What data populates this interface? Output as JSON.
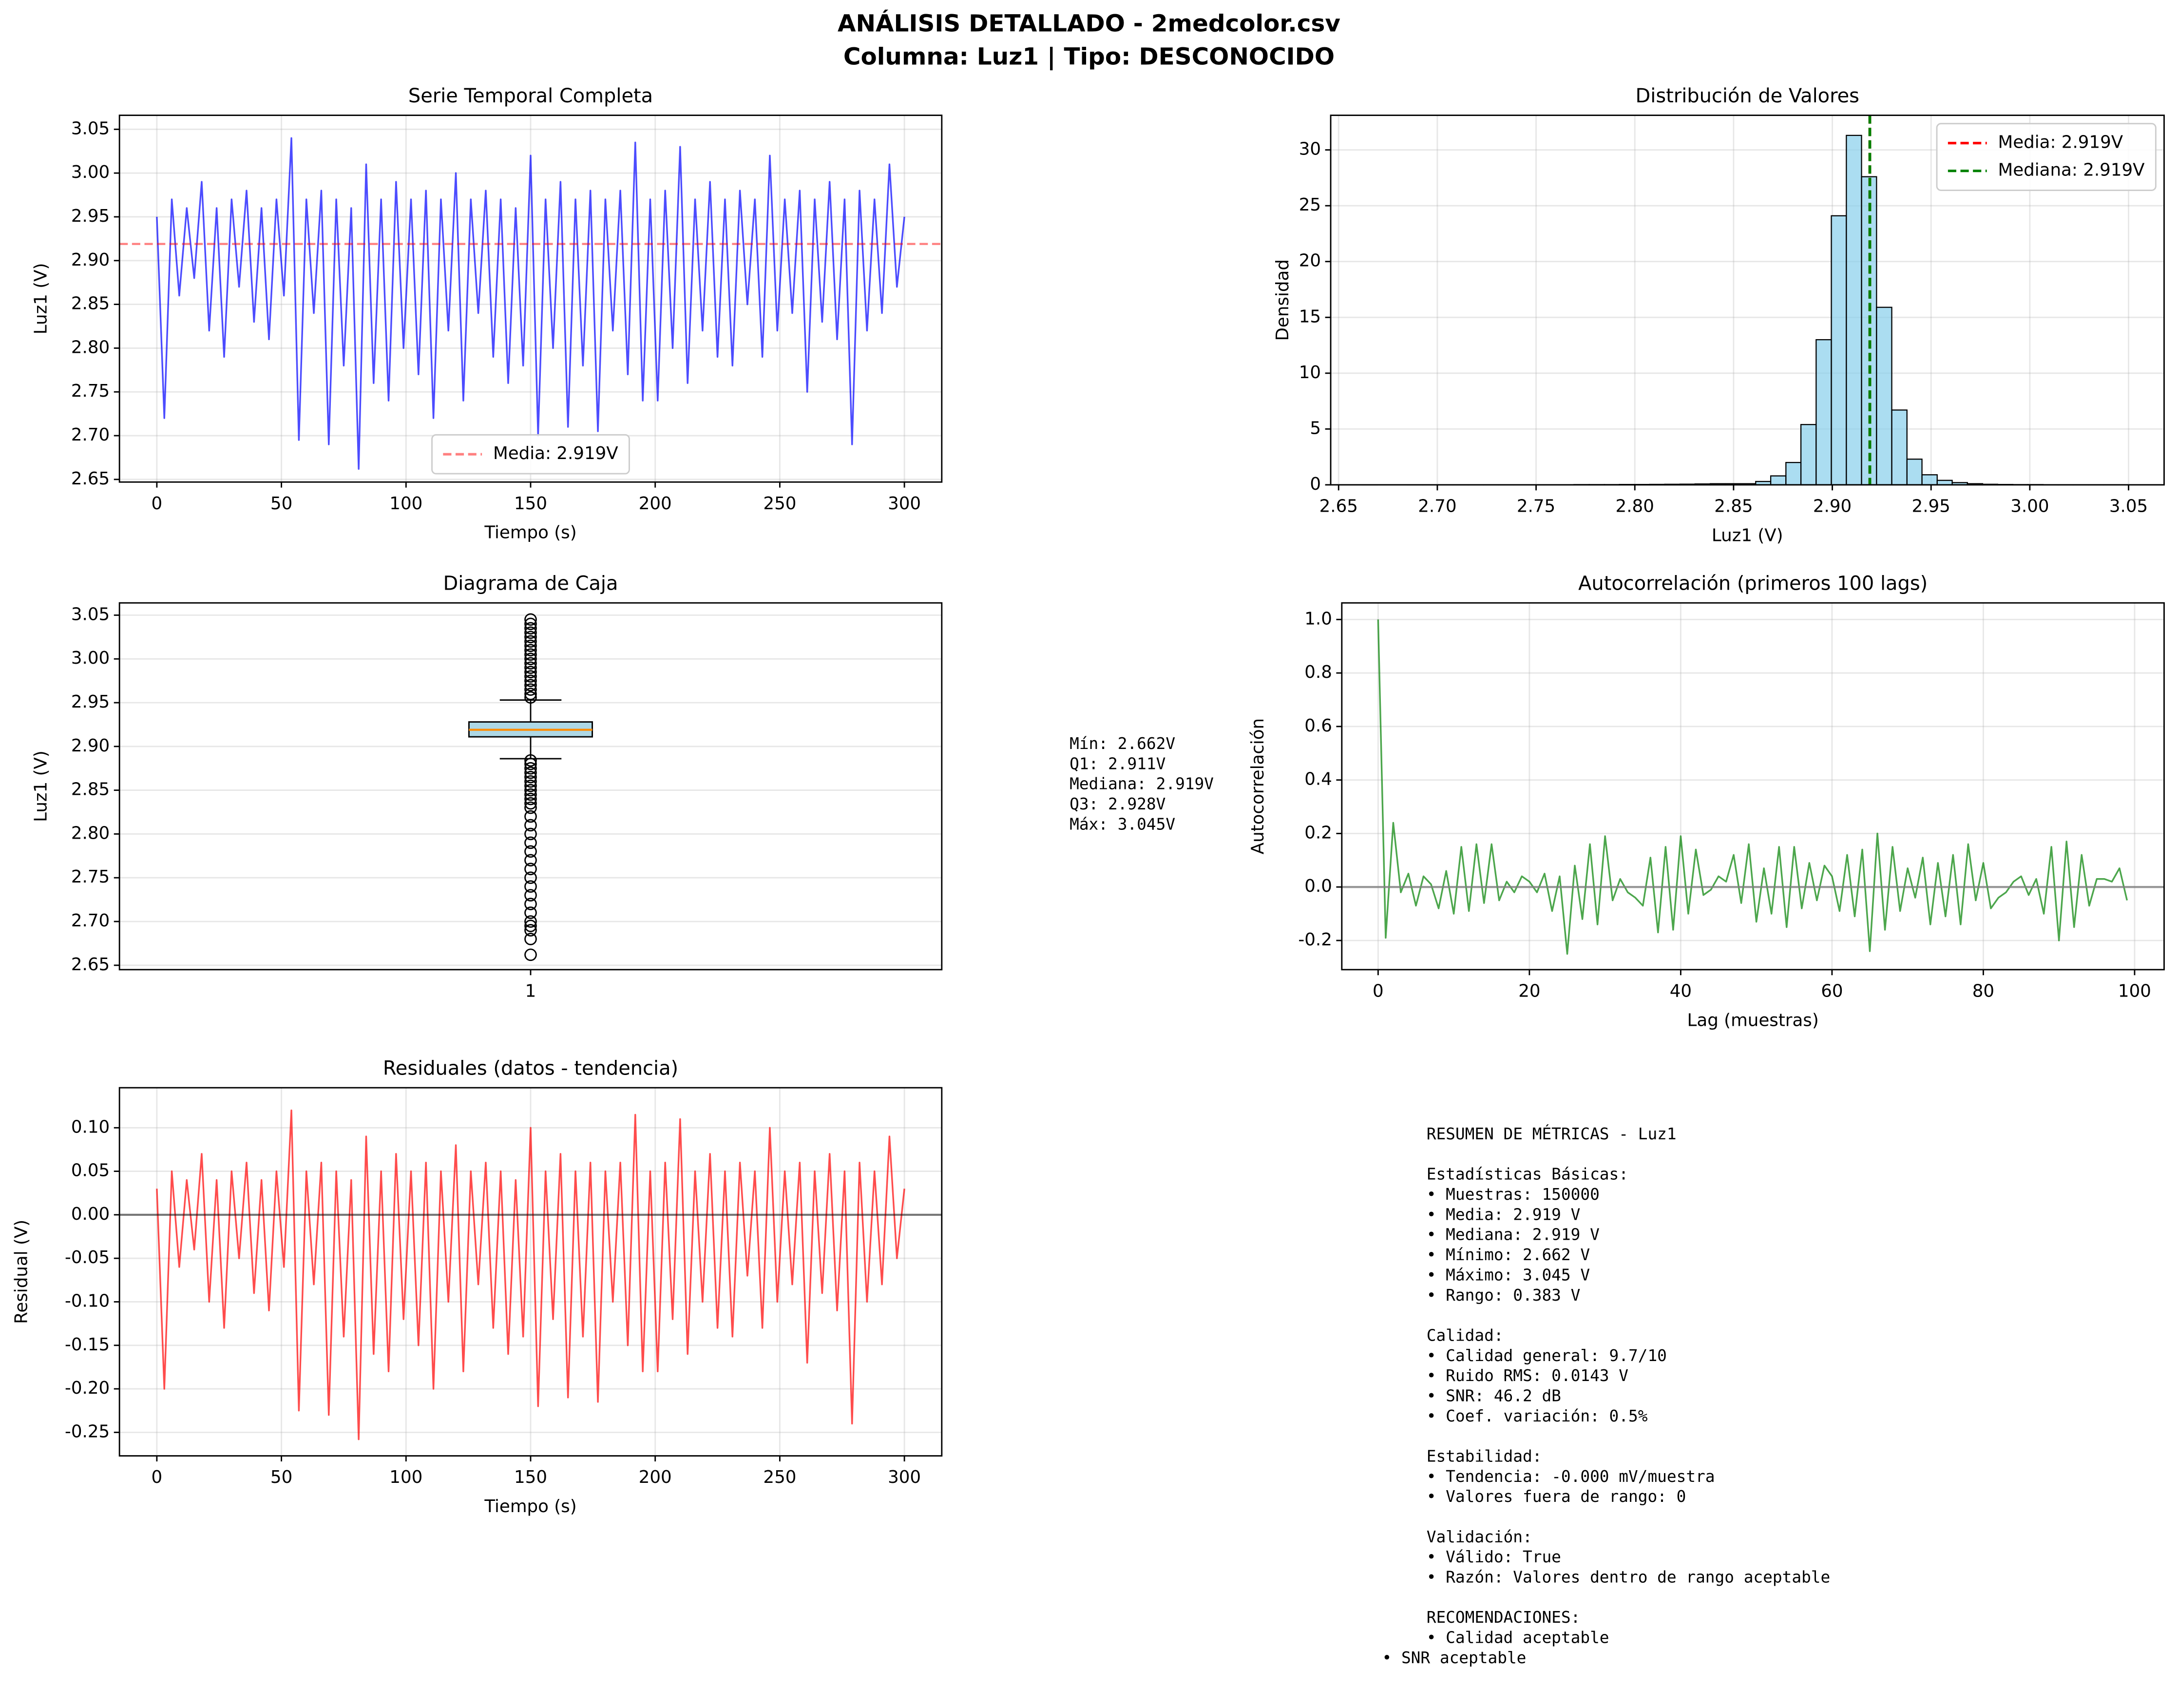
{
  "suptitle": [
    "ANÁLISIS DETALLADO - 2medcolor.csv",
    "Columna: Luz1 | Tipo: DESCONOCIDO"
  ],
  "chart_data": [
    {
      "type": "line",
      "title": "Serie Temporal Completa",
      "xlabel": "Tiempo (s)",
      "ylabel": "Luz1 (V)",
      "grid": "both",
      "legend": "lower center",
      "x": [
        0,
        3,
        6,
        9,
        12,
        15,
        18,
        21,
        24,
        27,
        30,
        33,
        36,
        39,
        42,
        45,
        48,
        51,
        54,
        57,
        60,
        63,
        66,
        69,
        72,
        75,
        78,
        81,
        84,
        87,
        90,
        93,
        96,
        99,
        102,
        105,
        108,
        111,
        114,
        117,
        120,
        123,
        126,
        129,
        132,
        135,
        138,
        141,
        144,
        147,
        150,
        153,
        156,
        159,
        162,
        165,
        168,
        171,
        174,
        177,
        180,
        183,
        186,
        189,
        192,
        195,
        198,
        201,
        204,
        207,
        210,
        213,
        216,
        219,
        222,
        225,
        228,
        231,
        234,
        237,
        240,
        243,
        246,
        249,
        252,
        255,
        258,
        261,
        264,
        267,
        270,
        273,
        276,
        279,
        282,
        285,
        288,
        291,
        294,
        297,
        300
      ],
      "series": [
        {
          "color": "#0000ff",
          "alpha": 0.7,
          "values": [
            2.95,
            2.72,
            2.97,
            2.86,
            2.96,
            2.88,
            2.99,
            2.82,
            2.96,
            2.79,
            2.97,
            2.87,
            2.98,
            2.83,
            2.96,
            2.81,
            2.97,
            2.86,
            3.04,
            2.695,
            2.97,
            2.84,
            2.98,
            2.69,
            2.97,
            2.78,
            2.96,
            2.662,
            3.01,
            2.76,
            2.97,
            2.74,
            2.99,
            2.8,
            2.97,
            2.77,
            2.98,
            2.72,
            2.97,
            2.82,
            3.0,
            2.74,
            2.97,
            2.84,
            2.98,
            2.79,
            2.97,
            2.76,
            2.96,
            2.78,
            3.02,
            2.7,
            2.97,
            2.8,
            2.99,
            2.71,
            2.97,
            2.78,
            2.98,
            2.705,
            2.97,
            2.82,
            2.98,
            2.77,
            3.035,
            2.74,
            2.97,
            2.74,
            2.98,
            2.8,
            3.03,
            2.76,
            2.97,
            2.82,
            2.99,
            2.79,
            2.97,
            2.78,
            2.98,
            2.85,
            2.97,
            2.79,
            3.02,
            2.82,
            2.97,
            2.84,
            2.98,
            2.75,
            2.97,
            2.83,
            2.99,
            2.81,
            2.97,
            2.69,
            2.98,
            2.82,
            2.97,
            2.84,
            3.01,
            2.87,
            2.95
          ]
        }
      ],
      "hlines": [
        {
          "name": "Media: 2.919V",
          "value": 2.919,
          "color": "#ff0000",
          "alpha": 0.5,
          "style": "dashed"
        }
      ],
      "xlim": [
        -15,
        315
      ],
      "xticks": [
        0,
        50,
        100,
        150,
        200,
        250,
        300
      ],
      "ylim": [
        2.647,
        3.066
      ],
      "yticks": [
        3.05,
        {
          "value": 3,
          "label": "3.00"
        },
        2.95,
        {
          "value": 2.9,
          "label": "2.90"
        },
        2.85,
        {
          "value": 2.8,
          "label": "2.80"
        },
        2.75,
        {
          "value": 2.7,
          "label": "2.70"
        },
        2.65
      ]
    },
    {
      "type": "histogram",
      "title": "Distribución de Valores",
      "xlabel": "Luz1 (V)",
      "ylabel": "Densidad",
      "grid": "both",
      "legend": "upper right",
      "color": "#87ceeb",
      "alpha": 0.7,
      "bins": [
        2.662,
        2.6697,
        2.6773,
        2.685,
        2.6926,
        2.7003,
        2.708,
        2.7156,
        2.7233,
        2.7309,
        2.7386,
        2.7463,
        2.7539,
        2.7616,
        2.7692,
        2.7769,
        2.7846,
        2.7922,
        2.7999,
        2.8075,
        2.8152,
        2.8229,
        2.8305,
        2.8382,
        2.8458,
        2.8535,
        2.8612,
        2.8688,
        2.8765,
        2.8841,
        2.8918,
        2.8995,
        2.9071,
        2.9148,
        2.9224,
        2.9301,
        2.9378,
        2.9454,
        2.9531,
        2.9607,
        2.9684,
        2.9761,
        2.9837,
        2.9914,
        2.999,
        3.0067,
        3.0144,
        3.022,
        3.0297,
        3.0373,
        3.045
      ],
      "values": [
        0.01,
        0,
        0,
        0.01,
        0.01,
        0.01,
        0.01,
        0.01,
        0.01,
        0.01,
        0.01,
        0.01,
        0.01,
        0.01,
        0.02,
        0.02,
        0.02,
        0.03,
        0.03,
        0.04,
        0.05,
        0.06,
        0.08,
        0.1,
        0.1,
        0.1,
        0.3,
        0.8,
        2.0,
        5.4,
        13.0,
        24.1,
        31.3,
        27.6,
        15.9,
        6.7,
        2.3,
        0.9,
        0.4,
        0.2,
        0.1,
        0.05,
        0.03,
        0.02,
        0.02,
        0.01,
        0.01,
        0.01,
        0.01,
        0.01
      ],
      "vlines": [
        {
          "name": "Media: 2.919V",
          "value": 2.919,
          "color": "#ff0000",
          "style": "dashed"
        },
        {
          "name": "Mediana: 2.919V",
          "value": 2.919,
          "color": "#008000",
          "style": "dashed"
        }
      ],
      "xlim": [
        2.646,
        3.068
      ],
      "xticks": [
        2.65,
        {
          "value": 2.7,
          "label": "2.70"
        },
        2.75,
        {
          "value": 2.8,
          "label": "2.80"
        },
        2.85,
        {
          "value": 2.9,
          "label": "2.90"
        },
        2.95,
        {
          "value": 3,
          "label": "3.00"
        },
        3.05
      ],
      "ylim": [
        0,
        33.1
      ],
      "yticks": [
        0,
        5,
        10,
        15,
        20,
        25,
        30
      ]
    },
    {
      "type": "box",
      "title": "Diagrama de Caja",
      "ylabel": "Luz1 (V)",
      "grid": "y",
      "categories": [
        "1"
      ],
      "box_color": "#add8e6",
      "median_color": "#ff8c00",
      "whislo": 2.886,
      "q1": 2.911,
      "median": 2.919,
      "q3": 2.928,
      "whishi": 2.953,
      "fliers": [
        2.956,
        2.96,
        2.965,
        2.97,
        2.975,
        2.98,
        2.985,
        2.99,
        2.995,
        3.0,
        3.005,
        3.01,
        3.015,
        3.02,
        3.025,
        3.03,
        3.035,
        3.04,
        3.045,
        2.884,
        2.88,
        2.875,
        2.87,
        2.865,
        2.86,
        2.855,
        2.85,
        2.845,
        2.84,
        2.835,
        2.83,
        2.82,
        2.81,
        2.8,
        2.79,
        2.78,
        2.77,
        2.76,
        2.75,
        2.74,
        2.73,
        2.72,
        2.71,
        2.7,
        2.695,
        2.69,
        2.68,
        2.662
      ],
      "annotation": [
        "Mín: 2.662V",
        "Q1: 2.911V",
        "Mediana: 2.919V",
        "Q3: 2.928V",
        "Máx: 3.045V"
      ],
      "ylim": [
        2.645,
        3.064
      ],
      "yticks": [
        3.05,
        {
          "value": 3,
          "label": "3.00"
        },
        2.95,
        {
          "value": 2.9,
          "label": "2.90"
        },
        2.85,
        {
          "value": 2.8,
          "label": "2.80"
        },
        2.75,
        {
          "value": 2.7,
          "label": "2.70"
        },
        2.65
      ]
    },
    {
      "type": "line",
      "title": "Autocorrelación (primeros 100 lags)",
      "xlabel": "Lag (muestras)",
      "ylabel": "Autocorrelación",
      "grid": "both",
      "x": [
        0,
        1,
        2,
        3,
        4,
        5,
        6,
        7,
        8,
        9,
        10,
        11,
        12,
        13,
        14,
        15,
        16,
        17,
        18,
        19,
        20,
        21,
        22,
        23,
        24,
        25,
        26,
        27,
        28,
        29,
        30,
        31,
        32,
        33,
        34,
        35,
        36,
        37,
        38,
        39,
        40,
        41,
        42,
        43,
        44,
        45,
        46,
        47,
        48,
        49,
        50,
        51,
        52,
        53,
        54,
        55,
        56,
        57,
        58,
        59,
        60,
        61,
        62,
        63,
        64,
        65,
        66,
        67,
        68,
        69,
        70,
        71,
        72,
        73,
        74,
        75,
        76,
        77,
        78,
        79,
        80,
        81,
        82,
        83,
        84,
        85,
        86,
        87,
        88,
        89,
        90,
        91,
        92,
        93,
        94,
        95,
        96,
        97,
        98,
        99
      ],
      "series": [
        {
          "color": "#008000",
          "alpha": 0.7,
          "values": [
            1.0,
            -0.19,
            0.24,
            -0.02,
            0.05,
            -0.07,
            0.04,
            0.01,
            -0.08,
            0.06,
            -0.1,
            0.15,
            -0.09,
            0.16,
            -0.06,
            0.16,
            -0.05,
            0.02,
            -0.02,
            0.04,
            0.02,
            -0.02,
            0.05,
            -0.09,
            0.04,
            -0.25,
            0.08,
            -0.12,
            0.16,
            -0.14,
            0.19,
            -0.05,
            0.03,
            -0.02,
            -0.04,
            -0.07,
            0.11,
            -0.17,
            0.15,
            -0.16,
            0.19,
            -0.1,
            0.14,
            -0.03,
            -0.01,
            0.04,
            0.02,
            0.12,
            -0.06,
            0.16,
            -0.13,
            0.07,
            -0.1,
            0.15,
            -0.15,
            0.15,
            -0.08,
            0.09,
            -0.05,
            0.08,
            0.04,
            -0.09,
            0.12,
            -0.11,
            0.14,
            -0.24,
            0.2,
            -0.16,
            0.15,
            -0.09,
            0.07,
            -0.04,
            0.11,
            -0.14,
            0.09,
            -0.11,
            0.12,
            -0.14,
            0.16,
            -0.05,
            0.09,
            -0.08,
            -0.04,
            -0.02,
            0.02,
            0.04,
            -0.03,
            0.03,
            -0.1,
            0.15,
            -0.2,
            0.17,
            -0.15,
            0.12,
            -0.07,
            0.03,
            0.03,
            0.02,
            0.07,
            -0.05
          ]
        }
      ],
      "hlines": [
        {
          "value": 0,
          "color": "#808080",
          "alpha": 0.8,
          "style": "solid"
        }
      ],
      "xlim": [
        -4.8,
        103.9
      ],
      "xticks": [
        0,
        20,
        40,
        60,
        80,
        100
      ],
      "ylim": [
        -0.309,
        1.062
      ],
      "yticks": [
        {
          "value": 1,
          "label": "1.0"
        },
        0.8,
        0.6,
        0.4,
        0.2,
        {
          "value": 0,
          "label": "0.0"
        },
        -0.2
      ]
    },
    {
      "type": "line",
      "title": "Residuales (datos - tendencia)",
      "xlabel": "Tiempo (s)",
      "ylabel": "Residual (V)",
      "grid": "both",
      "x": [
        0,
        3,
        6,
        9,
        12,
        15,
        18,
        21,
        24,
        27,
        30,
        33,
        36,
        39,
        42,
        45,
        48,
        51,
        54,
        57,
        60,
        63,
        66,
        69,
        72,
        75,
        78,
        81,
        84,
        87,
        90,
        93,
        96,
        99,
        102,
        105,
        108,
        111,
        114,
        117,
        120,
        123,
        126,
        129,
        132,
        135,
        138,
        141,
        144,
        147,
        150,
        153,
        156,
        159,
        162,
        165,
        168,
        171,
        174,
        177,
        180,
        183,
        186,
        189,
        192,
        195,
        198,
        201,
        204,
        207,
        210,
        213,
        216,
        219,
        222,
        225,
        228,
        231,
        234,
        237,
        240,
        243,
        246,
        249,
        252,
        255,
        258,
        261,
        264,
        267,
        270,
        273,
        276,
        279,
        282,
        285,
        288,
        291,
        294,
        297,
        300
      ],
      "series": [
        {
          "color": "#ff0000",
          "alpha": 0.7,
          "values": [
            0.03,
            -0.2,
            0.05,
            -0.06,
            0.04,
            -0.04,
            0.07,
            -0.1,
            0.04,
            -0.13,
            0.05,
            -0.05,
            0.06,
            -0.09,
            0.04,
            -0.11,
            0.05,
            -0.06,
            0.12,
            -0.225,
            0.05,
            -0.08,
            0.06,
            -0.23,
            0.05,
            -0.14,
            0.04,
            -0.258,
            0.09,
            -0.16,
            0.05,
            -0.18,
            0.07,
            -0.12,
            0.05,
            -0.15,
            0.06,
            -0.2,
            0.05,
            -0.1,
            0.08,
            -0.18,
            0.05,
            -0.08,
            0.06,
            -0.13,
            0.05,
            -0.16,
            0.04,
            -0.14,
            0.1,
            -0.22,
            0.05,
            -0.12,
            0.07,
            -0.21,
            0.05,
            -0.14,
            0.06,
            -0.215,
            0.05,
            -0.1,
            0.06,
            -0.15,
            0.115,
            -0.18,
            0.05,
            -0.18,
            0.06,
            -0.12,
            0.11,
            -0.16,
            0.05,
            -0.1,
            0.07,
            -0.13,
            0.05,
            -0.14,
            0.06,
            -0.07,
            0.05,
            -0.13,
            0.1,
            -0.1,
            0.05,
            -0.08,
            0.06,
            -0.17,
            0.05,
            -0.09,
            0.07,
            -0.11,
            0.05,
            -0.24,
            0.06,
            -0.1,
            0.05,
            -0.08,
            0.09,
            -0.05,
            0.03
          ]
        }
      ],
      "hlines": [
        {
          "value": 0,
          "color": "#000000",
          "alpha": 0.5,
          "style": "solid"
        }
      ],
      "xlim": [
        -15,
        315
      ],
      "xticks": [
        0,
        50,
        100,
        150,
        200,
        250,
        300
      ],
      "ylim": [
        -0.277,
        0.146
      ],
      "yticks": [
        {
          "value": 0.1,
          "label": "0.10"
        },
        0.05,
        {
          "value": 0,
          "label": "0.00"
        },
        -0.05,
        {
          "value": -0.1,
          "label": "-0.10"
        },
        -0.15,
        {
          "value": -0.2,
          "label": "-0.20"
        },
        -0.25
      ]
    }
  ],
  "summary": {
    "title": "RESUMEN DE MÉTRICAS - Luz1",
    "sections": [
      {
        "heading": "Estadísticas Básicas:",
        "items": [
          "• Muestras: 150000",
          "• Media: 2.919 V",
          "• Mediana: 2.919 V",
          "• Mínimo: 2.662 V",
          "• Máximo: 3.045 V",
          "• Rango: 0.383 V"
        ]
      },
      {
        "heading": "Calidad:",
        "items": [
          "• Calidad general: 9.7/10",
          "• Ruido RMS: 0.0143 V",
          "• SNR: 46.2 dB",
          "• Coef. variación: 0.5%"
        ]
      },
      {
        "heading": "Estabilidad:",
        "items": [
          "• Tendencia: -0.000 mV/muestra",
          "• Valores fuera de rango: 0"
        ]
      },
      {
        "heading": "Validación:",
        "items": [
          "• Válido: True",
          "• Razón: Valores dentro de rango aceptable"
        ]
      },
      {
        "heading": "RECOMENDACIONES:",
        "items": [
          "• Calidad aceptable",
          "• SNR aceptable"
        ]
      }
    ]
  }
}
